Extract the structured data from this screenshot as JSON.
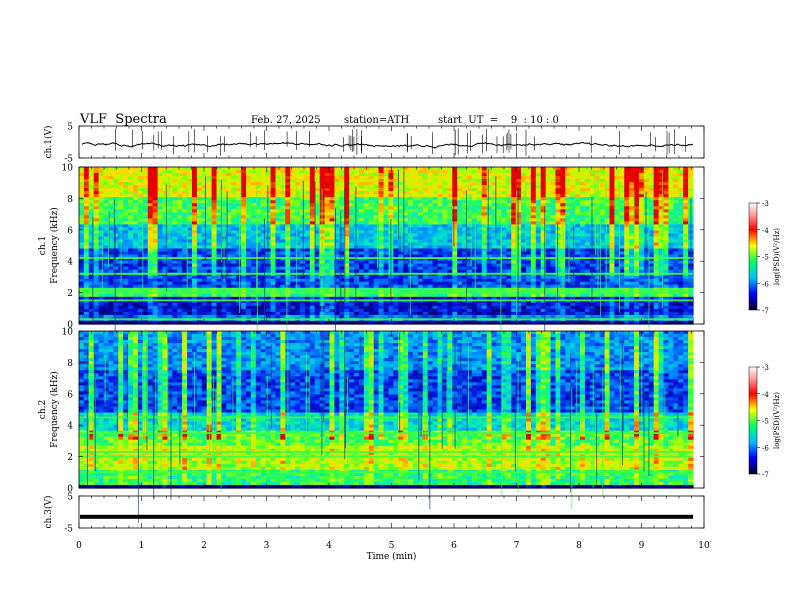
{
  "header": {
    "title": "VLF  Spectra",
    "date": "Feb. 27, 2025",
    "station": "station=ATH",
    "start": "start  UT  =    9  : 10 : 0"
  },
  "chart_data": [
    {
      "type": "line",
      "id": "ch1_waveform",
      "ylabel": "ch.1(V)",
      "ylim": [
        -5,
        5
      ],
      "yticks": [
        "5",
        "-5"
      ],
      "xlim": [
        0,
        10
      ],
      "description_values": "noisy waveform near 0 V with spikes"
    },
    {
      "type": "heatmap",
      "id": "ch1_spectrogram",
      "ylabel": "ch.1\nFrequency  (kHz)",
      "ylabel_lines": [
        "ch.1",
        "Frequency  (kHz)"
      ],
      "ylim": [
        0,
        10
      ],
      "yticks": [
        "0",
        "2",
        "4",
        "6",
        "8",
        "10"
      ],
      "xlim": [
        0,
        9.83
      ],
      "bands_khz": [
        0.3,
        1.5,
        2.0,
        2.2,
        3.2,
        4.2
      ],
      "colorbar": {
        "label": "log(PSD)(V²/Hz)",
        "range": [
          -7,
          -3
        ],
        "ticks": [
          "-3",
          "-4",
          "-5",
          "-6",
          "-7"
        ]
      }
    },
    {
      "type": "heatmap",
      "id": "ch2_spectrogram",
      "ylabel_lines": [
        "ch.2",
        "Frequency  (kHz)"
      ],
      "ylim": [
        0,
        10
      ],
      "yticks": [
        "0",
        "2",
        "4",
        "6",
        "8",
        "10"
      ],
      "xlim": [
        0,
        9.83
      ],
      "bands_khz": [
        1.0,
        2.0,
        2.3,
        3.5,
        4.5
      ],
      "colorbar": {
        "label": "log(PSD)(V²/Hz)",
        "range": [
          -7,
          -3
        ],
        "ticks": [
          "-3",
          "-4",
          "-5",
          "-6",
          "-7"
        ]
      }
    },
    {
      "type": "line",
      "id": "ch3_waveform",
      "ylabel": "ch.3(V)",
      "ylim": [
        -5,
        5
      ],
      "yticks": [
        "5",
        "-5"
      ],
      "xlim": [
        0,
        10
      ],
      "level_v": -1.5
    }
  ],
  "xaxis": {
    "label": "Time  (min)",
    "ticks": [
      "0",
      "1",
      "2",
      "3",
      "4",
      "5",
      "6",
      "7",
      "8",
      "9",
      "10"
    ],
    "range": [
      0,
      10
    ]
  },
  "colors": {
    "low": "#00008b",
    "mid": "#00ff80",
    "high": "#ff0000"
  }
}
